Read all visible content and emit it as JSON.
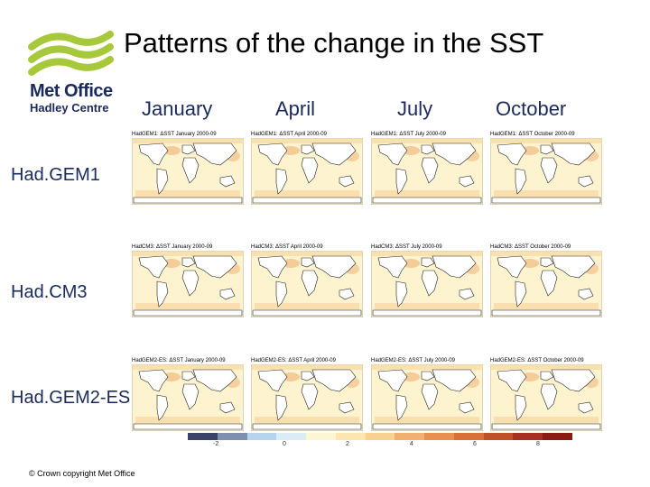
{
  "logo": {
    "line1": "Met Office",
    "line2": "Hadley Centre",
    "brand_green": "#a8c83c",
    "brand_navy": "#1a2a5a"
  },
  "title": "Patterns of the change in the SST",
  "months": [
    "January",
    "April",
    "July",
    "October"
  ],
  "rows": [
    {
      "label": "Had.GEM1",
      "panels": [
        "HadGEM1: ΔSST January 2000-09",
        "HadGEM1: ΔSST April 2000-09",
        "HadGEM1: ΔSST July 2000-09",
        "HadGEM1: ΔSST October 2000-09"
      ]
    },
    {
      "label": "Had.CM3",
      "panels": [
        "HadCM3: ΔSST January 2000-09",
        "HadCM3: ΔSST April 2000-09",
        "HadCM3: ΔSST July 2000-09",
        "HadCM3: ΔSST October 2000-09"
      ]
    },
    {
      "label": "Had.GEM2-ES",
      "panels": [
        "HadGEM2-ES: ΔSST January 2000-09",
        "HadGEM2-ES: ΔSST April 2000-09",
        "HadGEM2-ES: ΔSST July 2000-09",
        "HadGEM2-ES: ΔSST October 2000-09"
      ]
    }
  ],
  "colorbar": {
    "colors": [
      "#3a4468",
      "#7f8fb0",
      "#b6d4ec",
      "#dcecf6",
      "#fdf6d4",
      "#fbe6b0",
      "#f8d090",
      "#f2b070",
      "#e89050",
      "#d87038",
      "#c05028",
      "#a83020",
      "#8a1c14"
    ],
    "ticks": [
      "-2",
      "0",
      "2",
      "4",
      "6",
      "8"
    ]
  },
  "footer": "© Crown copyright   Met Office"
}
